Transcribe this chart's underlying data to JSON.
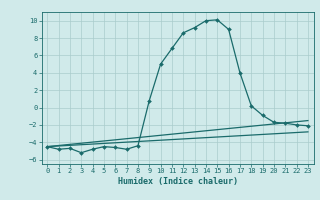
{
  "xlabel": "Humidex (Indice chaleur)",
  "ylabel": "",
  "background_color": "#d0eaea",
  "grid_color": "#aacccc",
  "line_color": "#1a6b6b",
  "xlim": [
    -0.5,
    23.5
  ],
  "ylim": [
    -6.5,
    11
  ],
  "yticks": [
    -6,
    -4,
    -2,
    0,
    2,
    4,
    6,
    8,
    10
  ],
  "xticks": [
    0,
    1,
    2,
    3,
    4,
    5,
    6,
    7,
    8,
    9,
    10,
    11,
    12,
    13,
    14,
    15,
    16,
    17,
    18,
    19,
    20,
    21,
    22,
    23
  ],
  "series": [
    {
      "x": [
        0,
        1,
        2,
        3,
        4,
        5,
        6,
        7,
        8,
        9,
        10,
        11,
        12,
        13,
        14,
        15,
        16,
        17,
        18,
        19,
        20,
        21,
        22,
        23
      ],
      "y": [
        -4.5,
        -4.8,
        -4.7,
        -5.2,
        -4.8,
        -4.5,
        -4.6,
        -4.8,
        -4.4,
        0.8,
        5.0,
        6.8,
        8.6,
        9.2,
        10.0,
        10.1,
        9.0,
        4.0,
        0.2,
        -0.9,
        -1.7,
        -1.8,
        -2.0,
        -2.1
      ],
      "has_markers": true
    },
    {
      "x": [
        0,
        23
      ],
      "y": [
        -4.5,
        -1.5
      ],
      "has_markers": false
    },
    {
      "x": [
        0,
        23
      ],
      "y": [
        -4.5,
        -2.8
      ],
      "has_markers": false
    }
  ],
  "marker": "D",
  "markersize": 2.0,
  "linewidth": 0.9,
  "tick_fontsize": 5.0,
  "xlabel_fontsize": 6.0
}
